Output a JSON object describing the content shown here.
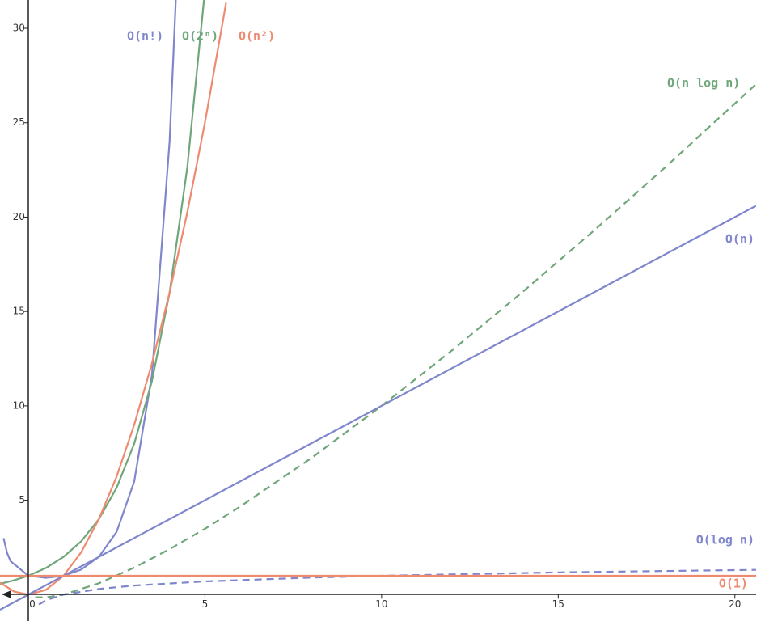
{
  "chart_data": {
    "type": "line",
    "xlim": [
      -0.8,
      20.6
    ],
    "ylim": [
      -1.4,
      31.5
    ],
    "xticks": [
      0,
      5,
      10,
      15,
      20
    ],
    "yticks": [
      5,
      10,
      15,
      20,
      25,
      30
    ],
    "grid": false,
    "series": [
      {
        "name": "O(n!)",
        "color": "#7f86cc",
        "dashed": false,
        "x": [
          -0.7,
          -0.6,
          -0.5,
          0,
          0.5,
          1,
          1.5,
          2,
          2.5,
          3,
          3.5,
          4,
          4.2
        ],
        "values": [
          2.99,
          2.22,
          1.77,
          1,
          0.89,
          1,
          1.33,
          2,
          3.32,
          6,
          11.63,
          24,
          32.58
        ]
      },
      {
        "name": "O(2ⁿ)",
        "color": "#6fa67a",
        "dashed": false,
        "x": [
          -0.8,
          -0.4,
          0,
          0.5,
          1,
          1.5,
          2,
          2.5,
          3,
          3.5,
          4,
          4.5,
          5
        ],
        "values": [
          0.57,
          0.76,
          1,
          1.41,
          2,
          2.83,
          4,
          5.66,
          8,
          11.31,
          16,
          22.63,
          32
        ]
      },
      {
        "name": "O(n²)",
        "color": "#ee8a70",
        "dashed": false,
        "x": [
          -0.8,
          -0.4,
          0,
          0.5,
          1,
          1.5,
          2,
          2.5,
          3,
          3.5,
          4,
          4.5,
          5,
          5.6
        ],
        "values": [
          0.64,
          0.16,
          0,
          0.25,
          1,
          2.25,
          4,
          6.25,
          9,
          12.25,
          16,
          20.25,
          25,
          31.36
        ]
      },
      {
        "name": "O(n log n)",
        "color": "#6fa67a",
        "dashed": true,
        "x": [
          0.2,
          0.5,
          1,
          2,
          3,
          4,
          5,
          6,
          8,
          10,
          12,
          14,
          16,
          18,
          20,
          20.6
        ],
        "values": [
          -0.14,
          -0.15,
          0,
          0.6,
          1.43,
          2.41,
          3.49,
          4.67,
          7.22,
          10,
          12.95,
          16.05,
          19.27,
          22.59,
          26.02,
          27.04
        ]
      },
      {
        "name": "O(n)",
        "color": "#7f86cc",
        "dashed": false,
        "x": [
          -0.8,
          20.6
        ],
        "values": [
          -0.8,
          20.6
        ]
      },
      {
        "name": "O(log n)",
        "color": "#7f86cc",
        "dashed": true,
        "x": [
          0.3,
          0.5,
          1,
          2,
          3,
          5,
          8,
          10,
          15,
          20,
          20.6
        ],
        "values": [
          -0.52,
          -0.3,
          0,
          0.3,
          0.48,
          0.7,
          0.9,
          1,
          1.18,
          1.3,
          1.31
        ]
      },
      {
        "name": "O(1)",
        "color": "#ee8a70",
        "dashed": false,
        "x": [
          -0.8,
          20.6
        ],
        "values": [
          1,
          1
        ]
      }
    ]
  }
}
